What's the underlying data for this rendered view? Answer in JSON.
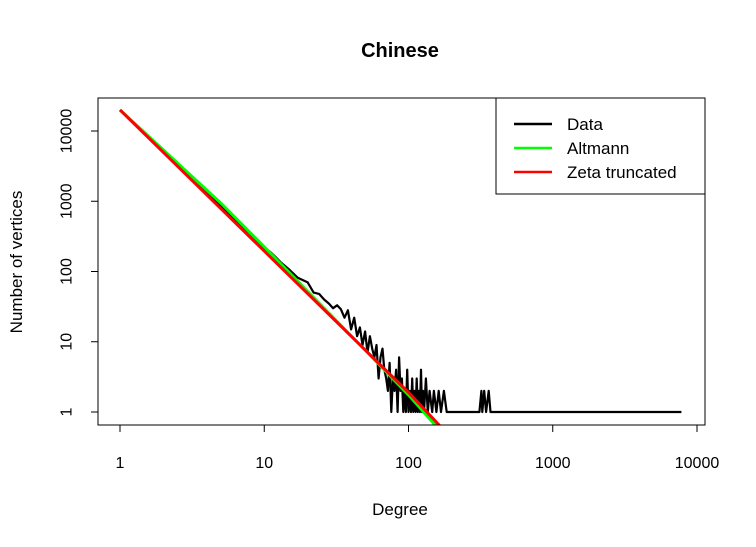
{
  "chart_data": {
    "type": "line",
    "title": "Chinese",
    "xlabel": "Degree",
    "ylabel": "Number of vertices",
    "x_scale": "log",
    "y_scale": "log",
    "xlim": [
      1,
      10000
    ],
    "ylim": [
      0.8,
      24000
    ],
    "x_ticks": [
      {
        "value": 1,
        "label": "1"
      },
      {
        "value": 10,
        "label": "10"
      },
      {
        "value": 100,
        "label": "100"
      },
      {
        "value": 1000,
        "label": "1000"
      },
      {
        "value": 10000,
        "label": "10000"
      }
    ],
    "y_ticks": [
      {
        "value": 1,
        "label": "1"
      },
      {
        "value": 10,
        "label": "10"
      },
      {
        "value": 100,
        "label": "100"
      },
      {
        "value": 1000,
        "label": "1000"
      },
      {
        "value": 10000,
        "label": "10000"
      }
    ],
    "grid": false,
    "legend_position": "top-right",
    "series": [
      {
        "name": "Data",
        "color": "#000000",
        "points": [
          [
            1,
            20000
          ],
          [
            1.5,
            9000
          ],
          [
            2,
            5100
          ],
          [
            2.5,
            3300
          ],
          [
            3,
            2300
          ],
          [
            3.5,
            1750
          ],
          [
            4,
            1350
          ],
          [
            5,
            870
          ],
          [
            6,
            610
          ],
          [
            7,
            450
          ],
          [
            8,
            345
          ],
          [
            9,
            270
          ],
          [
            10,
            215
          ],
          [
            11,
            190
          ],
          [
            12,
            160
          ],
          [
            13,
            135
          ],
          [
            15,
            105
          ],
          [
            17,
            82
          ],
          [
            20,
            70
          ],
          [
            22,
            50
          ],
          [
            24,
            48
          ],
          [
            26,
            40
          ],
          [
            28,
            35
          ],
          [
            30,
            30
          ],
          [
            32,
            33
          ],
          [
            34,
            29
          ],
          [
            36,
            22
          ],
          [
            38,
            28
          ],
          [
            40,
            15
          ],
          [
            42,
            22
          ],
          [
            44,
            12
          ],
          [
            46,
            16
          ],
          [
            48,
            9
          ],
          [
            50,
            14
          ],
          [
            52,
            7
          ],
          [
            54,
            12
          ],
          [
            56,
            8
          ],
          [
            58,
            6
          ],
          [
            60,
            9
          ],
          [
            62,
            3
          ],
          [
            64,
            6
          ],
          [
            66,
            8
          ],
          [
            68,
            4
          ],
          [
            70,
            3
          ],
          [
            72,
            2
          ],
          [
            74,
            5
          ],
          [
            76,
            1
          ],
          [
            78,
            3
          ],
          [
            80,
            2
          ],
          [
            82,
            4
          ],
          [
            84,
            1
          ],
          [
            86,
            6
          ],
          [
            88,
            2
          ],
          [
            90,
            3
          ],
          [
            92,
            1
          ],
          [
            94,
            2
          ],
          [
            96,
            1
          ],
          [
            98,
            4
          ],
          [
            100,
            1
          ],
          [
            102,
            2
          ],
          [
            104,
            1
          ],
          [
            106,
            3
          ],
          [
            108,
            1
          ],
          [
            110,
            2
          ],
          [
            112,
            1
          ],
          [
            114,
            3
          ],
          [
            116,
            1
          ],
          [
            118,
            2
          ],
          [
            120,
            1
          ],
          [
            122,
            4
          ],
          [
            124,
            1
          ],
          [
            126,
            2
          ],
          [
            128,
            1
          ],
          [
            132,
            3
          ],
          [
            136,
            1
          ],
          [
            140,
            2
          ],
          [
            146,
            1
          ],
          [
            150,
            2
          ],
          [
            156,
            1
          ],
          [
            162,
            2
          ],
          [
            168,
            1
          ],
          [
            176,
            2
          ],
          [
            184,
            1
          ],
          [
            195,
            1
          ],
          [
            210,
            1
          ],
          [
            230,
            1
          ],
          [
            260,
            1
          ],
          [
            290,
            1
          ],
          [
            310,
            1
          ],
          [
            320,
            2
          ],
          [
            325,
            1
          ],
          [
            335,
            2
          ],
          [
            345,
            1
          ],
          [
            360,
            2
          ],
          [
            370,
            1
          ],
          [
            500,
            1
          ],
          [
            1000,
            1
          ],
          [
            3000,
            1
          ],
          [
            7800,
            1
          ]
        ]
      },
      {
        "name": "Altmann",
        "color": "#00ff00",
        "points": [
          [
            1,
            20000
          ],
          [
            5,
            940
          ],
          [
            10,
            225
          ],
          [
            20,
            52
          ],
          [
            50,
            7.6
          ],
          [
            100,
            1.75
          ],
          [
            200,
            0.35
          ]
        ]
      },
      {
        "name": "Zeta truncated",
        "color": "#ff0000",
        "points": [
          [
            1,
            20000
          ],
          [
            10,
            195
          ],
          [
            100,
            1.9
          ],
          [
            240,
            0.28
          ]
        ]
      }
    ]
  }
}
